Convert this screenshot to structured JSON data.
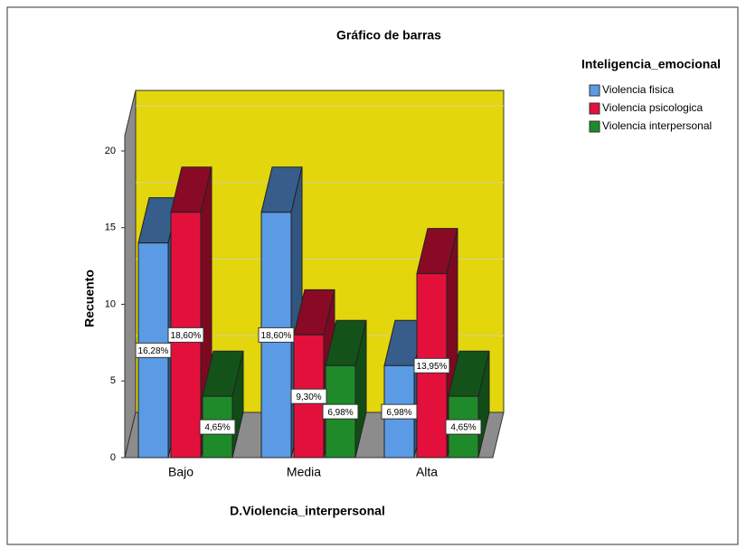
{
  "chart_data": {
    "type": "bar3d",
    "title": "Gráfico de barras",
    "categories": [
      "Bajo",
      "Media",
      "Alta"
    ],
    "x_label": "D.Violencia_interpersonal",
    "y_label": "Recuento",
    "legend_title": "Inteligencia_emocional",
    "series": [
      {
        "name": "Violencia fisica",
        "color": "#5b9be6",
        "values": [
          14,
          16,
          6
        ],
        "percent_labels": [
          "16,28%",
          "18,60%",
          "6,98%"
        ]
      },
      {
        "name": "Violencia psicologica",
        "color": "#e3103c",
        "values": [
          16,
          8,
          12
        ],
        "percent_labels": [
          "18,60%",
          "9,30%",
          "13,95%"
        ]
      },
      {
        "name": "Violencia interpersonal",
        "color": "#1f8a2a",
        "values": [
          4,
          6,
          4
        ],
        "percent_labels": [
          "4,65%",
          "6,98%",
          "4,65%"
        ]
      }
    ],
    "ylim": [
      0,
      21
    ],
    "yticks": [
      0,
      5,
      10,
      15,
      20
    ],
    "grid": true,
    "wall_color": "#e3d60c",
    "floor_color": "#8c8c8c"
  }
}
